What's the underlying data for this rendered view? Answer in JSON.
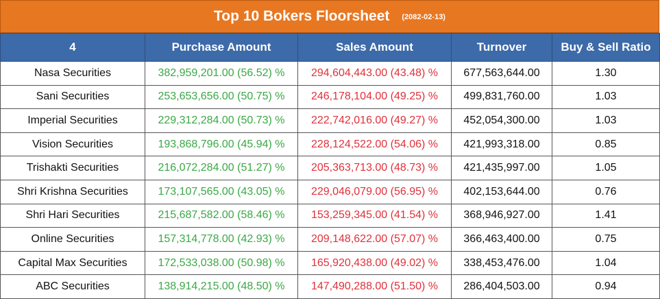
{
  "title": "Top 10 Bokers Floorsheet",
  "date": "(2082-02-13)",
  "colors": {
    "title_bg": "#e87722",
    "header_bg": "#3d6aa8",
    "purchase": "#3aa845",
    "sales": "#e0303a"
  },
  "columns": [
    "4",
    "Purchase Amount",
    "Sales Amount",
    "Turnover",
    "Buy & Sell Ratio"
  ],
  "rows": [
    {
      "broker": "Nasa Securities",
      "purchase": "382,959,201.00 (56.52) %",
      "sales": "294,604,443.00 (43.48) %",
      "turnover": "677,563,644.00",
      "ratio": "1.30"
    },
    {
      "broker": "Sani Securities",
      "purchase": "253,653,656.00 (50.75) %",
      "sales": "246,178,104.00 (49.25) %",
      "turnover": "499,831,760.00",
      "ratio": "1.03"
    },
    {
      "broker": "Imperial Securities",
      "purchase": "229,312,284.00 (50.73) %",
      "sales": "222,742,016.00 (49.27) %",
      "turnover": "452,054,300.00",
      "ratio": "1.03"
    },
    {
      "broker": "Vision Securities",
      "purchase": "193,868,796.00 (45.94) %",
      "sales": "228,124,522.00 (54.06) %",
      "turnover": "421,993,318.00",
      "ratio": "0.85"
    },
    {
      "broker": "Trishakti Securities",
      "purchase": "216,072,284.00 (51.27) %",
      "sales": "205,363,713.00 (48.73) %",
      "turnover": "421,435,997.00",
      "ratio": "1.05"
    },
    {
      "broker": "Shri Krishna Securities",
      "purchase": "173,107,565.00 (43.05) %",
      "sales": "229,046,079.00 (56.95) %",
      "turnover": "402,153,644.00",
      "ratio": "0.76"
    },
    {
      "broker": "Shri Hari Securities",
      "purchase": "215,687,582.00 (58.46) %",
      "sales": "153,259,345.00 (41.54) %",
      "turnover": "368,946,927.00",
      "ratio": "1.41"
    },
    {
      "broker": "Online Securities",
      "purchase": "157,314,778.00 (42.93) %",
      "sales": "209,148,622.00 (57.07) %",
      "turnover": "366,463,400.00",
      "ratio": "0.75"
    },
    {
      "broker": "Capital Max Securities",
      "purchase": "172,533,038.00 (50.98) %",
      "sales": "165,920,438.00 (49.02) %",
      "turnover": "338,453,476.00",
      "ratio": "1.04"
    },
    {
      "broker": "ABC Securities",
      "purchase": "138,914,215.00 (48.50) %",
      "sales": "147,490,288.00 (51.50) %",
      "turnover": "286,404,503.00",
      "ratio": "0.94"
    }
  ]
}
